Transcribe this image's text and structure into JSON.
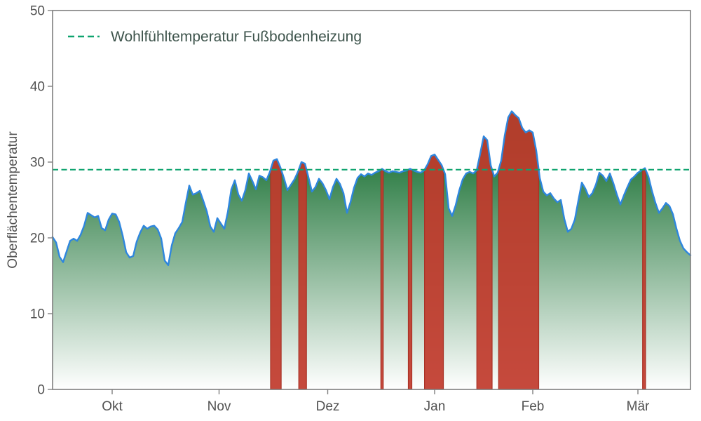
{
  "chart_data": {
    "type": "area",
    "title": "",
    "xlabel": "",
    "ylabel": "Oberflächentemperatur",
    "ylim": [
      0,
      50
    ],
    "yticks": [
      0,
      10,
      20,
      30,
      40,
      50
    ],
    "x_tick_labels": [
      "Okt",
      "Nov",
      "Dez",
      "Jan",
      "Feb",
      "Mär"
    ],
    "x_tick_days": [
      17,
      47.5,
      78.5,
      109,
      137,
      167
    ],
    "x_range_days": [
      0,
      182
    ],
    "grid": false,
    "legend_position": "upper left",
    "threshold": {
      "label": "Wohlfühltemperatur Fußbodenheizung",
      "value": 29
    },
    "series": [
      {
        "name": "Oberflächentemperatur",
        "values": [
          20.1,
          19.4,
          17.5,
          16.8,
          18.2,
          19.6,
          19.9,
          19.6,
          20.4,
          21.6,
          23.3,
          23.0,
          22.7,
          22.9,
          21.3,
          21.0,
          22.4,
          23.2,
          23.1,
          22.1,
          20.3,
          18.1,
          17.4,
          17.6,
          19.5,
          20.7,
          21.6,
          21.2,
          21.5,
          21.6,
          21.1,
          19.9,
          17.0,
          16.4,
          19.0,
          20.6,
          21.3,
          22.1,
          24.6,
          26.9,
          25.7,
          25.9,
          26.2,
          24.9,
          23.5,
          21.5,
          20.8,
          22.6,
          21.9,
          21.2,
          23.4,
          26.4,
          27.6,
          25.7,
          24.9,
          26.3,
          28.5,
          27.5,
          26.4,
          28.2,
          28.0,
          27.6,
          28.7,
          30.2,
          30.4,
          29.3,
          27.9,
          26.3,
          27.0,
          27.7,
          28.7,
          30.0,
          29.8,
          28.0,
          26.1,
          26.7,
          27.8,
          27.2,
          26.3,
          25.1,
          26.7,
          27.8,
          27.1,
          25.9,
          23.3,
          24.7,
          26.6,
          27.9,
          28.4,
          28.1,
          28.5,
          28.3,
          28.6,
          28.8,
          29.1,
          28.8,
          28.6,
          28.8,
          28.7,
          28.6,
          28.8,
          28.9,
          29.1,
          28.9,
          28.7,
          28.6,
          28.9,
          29.7,
          30.8,
          31.0,
          30.3,
          29.6,
          28.4,
          23.9,
          22.9,
          24.3,
          26.2,
          27.7,
          28.5,
          28.7,
          28.5,
          28.9,
          31.1,
          33.4,
          32.9,
          29.6,
          28.1,
          28.6,
          30.2,
          33.5,
          35.9,
          36.7,
          36.2,
          35.8,
          34.5,
          33.9,
          34.2,
          33.9,
          31.5,
          27.9,
          26.1,
          25.6,
          25.9,
          25.2,
          24.7,
          25.0,
          22.5,
          20.8,
          21.2,
          22.4,
          24.9,
          27.3,
          26.5,
          25.4,
          25.9,
          27.0,
          28.6,
          28.2,
          27.5,
          28.5,
          27.2,
          25.7,
          24.4,
          25.6,
          26.7,
          27.7,
          28.1,
          28.6,
          28.9,
          29.2,
          28.1,
          26.2,
          24.6,
          23.3,
          23.9,
          24.6,
          24.2,
          23.1,
          21.2,
          19.6,
          18.6,
          18.1,
          17.7
        ]
      }
    ],
    "colors": {
      "line": "#2e86de",
      "area_top": "#176f31",
      "area_bottom": "#ffffff",
      "exceed_fill": "#c0392b",
      "exceed_edge": "#a93226",
      "threshold": "#0fa36f",
      "axis_text": "#525252",
      "legend_text": "#3e544c",
      "spine": "#7f7f7f"
    }
  }
}
